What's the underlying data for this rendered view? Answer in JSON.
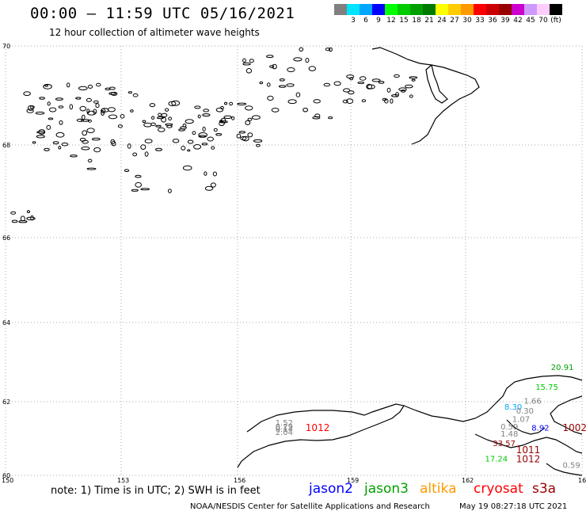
{
  "header": {
    "title": "00:00 – 11:59 UTC 05/16/2021",
    "subtitle": "12 hour collection of altimeter wave heights"
  },
  "color_scale": [
    {
      "color": "#808080",
      "label": ""
    },
    {
      "color": "#00e5ff",
      "label": "3"
    },
    {
      "color": "#00a5ff",
      "label": "6"
    },
    {
      "color": "#0000ff",
      "label": "9"
    },
    {
      "color": "#00ff00",
      "label": "12"
    },
    {
      "color": "#00cc00",
      "label": "15"
    },
    {
      "color": "#00a000",
      "label": "18"
    },
    {
      "color": "#007a00",
      "label": "21"
    },
    {
      "color": "#ffff00",
      "label": "24"
    },
    {
      "color": "#ffcc00",
      "label": "27"
    },
    {
      "color": "#ff9900",
      "label": "30"
    },
    {
      "color": "#ff0000",
      "label": "33"
    },
    {
      "color": "#cc0000",
      "label": "36"
    },
    {
      "color": "#990000",
      "label": "39"
    },
    {
      "color": "#cc00cc",
      "label": "42"
    },
    {
      "color": "#cc99ff",
      "label": "45"
    },
    {
      "color": "#ffccff",
      "label": "70"
    },
    {
      "color": "#000000",
      "label": "(ft)"
    }
  ],
  "map": {
    "lat_labels": [
      "70",
      "68",
      "66",
      "64",
      "62",
      "60"
    ],
    "lon_labels": [
      "150",
      "153",
      "156",
      "159",
      "162",
      "165"
    ],
    "grid_color": "#aaaaaa",
    "pressure_labels": [
      {
        "text": "1012",
        "color": "#ff0000",
        "lon": 157.8,
        "lat": 61.2
      },
      {
        "text": "1002",
        "color": "#990000",
        "lon": 164.5,
        "lat": 61.2
      },
      {
        "text": "1011",
        "color": "#990000",
        "lon": 163.3,
        "lat": 60.6
      },
      {
        "text": "1012",
        "color": "#990000",
        "lon": 163.3,
        "lat": 60.35
      }
    ],
    "wave_readings": [
      {
        "text": "20.91",
        "color": "#00a000",
        "lon": 164.2,
        "lat": 62.8
      },
      {
        "text": "15.75",
        "color": "#00cc00",
        "lon": 163.8,
        "lat": 62.3
      },
      {
        "text": "1.66",
        "color": "#808080",
        "lon": 163.5,
        "lat": 61.95
      },
      {
        "text": "8.30",
        "color": "#00a5ff",
        "lon": 163.0,
        "lat": 61.78
      },
      {
        "text": "0.30",
        "color": "#808080",
        "lon": 163.3,
        "lat": 61.68
      },
      {
        "text": "1.07",
        "color": "#808080",
        "lon": 163.2,
        "lat": 61.45
      },
      {
        "text": "0.59",
        "color": "#808080",
        "lon": 162.9,
        "lat": 61.25
      },
      {
        "text": "8.92",
        "color": "#0000ff",
        "lon": 163.7,
        "lat": 61.22
      },
      {
        "text": "1.48",
        "color": "#808080",
        "lon": 162.9,
        "lat": 61.05
      },
      {
        "text": "33.57",
        "color": "#990000",
        "lon": 162.7,
        "lat": 60.8
      },
      {
        "text": "17.24",
        "color": "#00cc00",
        "lon": 162.5,
        "lat": 60.38
      },
      {
        "text": "0.59",
        "color": "#808080",
        "lon": 164.5,
        "lat": 60.2
      },
      {
        "text": "1.52",
        "color": "#808080",
        "lon": 157.0,
        "lat": 61.35
      },
      {
        "text": "0.29",
        "color": "#808080",
        "lon": 157.0,
        "lat": 61.25
      },
      {
        "text": "0.14",
        "color": "#808080",
        "lon": 157.0,
        "lat": 61.18
      },
      {
        "text": "2.04",
        "color": "#808080",
        "lon": 157.0,
        "lat": 61.1
      }
    ]
  },
  "note": "note: 1) Time is in UTC; 2) SWH is in feet",
  "satellites": [
    {
      "name": "jason2",
      "color": "#0000ff"
    },
    {
      "name": "jason3",
      "color": "#00a000"
    },
    {
      "name": "altika",
      "color": "#ff9900"
    },
    {
      "name": "cryosat",
      "color": "#ff0000"
    },
    {
      "name": "s3a",
      "color": "#990000"
    }
  ],
  "footer": {
    "credit": "NOAA/NESDIS Center for Satellite Applications and Research",
    "timestamp": "May 19 08:27:18 UTC 2021"
  }
}
